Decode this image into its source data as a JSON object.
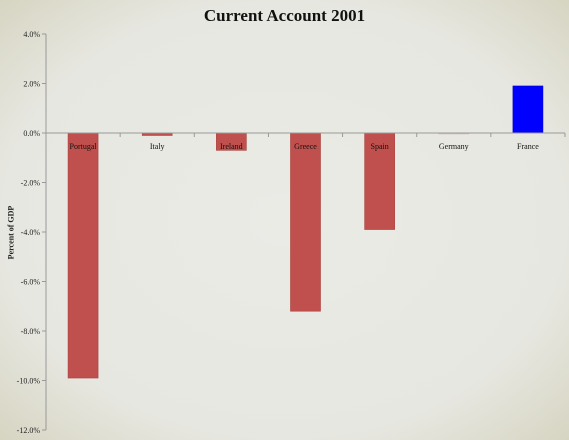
{
  "chart_data": {
    "type": "bar",
    "title": "Current Account 2001",
    "ylabel": "Percent of GDP",
    "xlabel": "",
    "categories": [
      "Portugal",
      "Italy",
      "Ireland",
      "Greece",
      "Spain",
      "Germany",
      "France"
    ],
    "values": [
      -9.9,
      -0.1,
      -0.7,
      -7.2,
      -3.9,
      0.0,
      1.9
    ],
    "bar_colors": [
      "#c0504d",
      "#c0504d",
      "#c0504d",
      "#c0504d",
      "#c0504d",
      "#c0504d",
      "#0000ff"
    ],
    "ylim": [
      -12.0,
      4.0
    ],
    "yticks": [
      4.0,
      2.0,
      0.0,
      -2.0,
      -4.0,
      -6.0,
      -8.0,
      -10.0,
      -12.0
    ],
    "ytick_labels": [
      "4.0%",
      "2.0%",
      "0.0%",
      "-2.0%",
      "-4.0%",
      "-6.0%",
      "-8.0%",
      "-10.0%",
      "-12.0%"
    ],
    "grid": false,
    "legend": "none"
  }
}
